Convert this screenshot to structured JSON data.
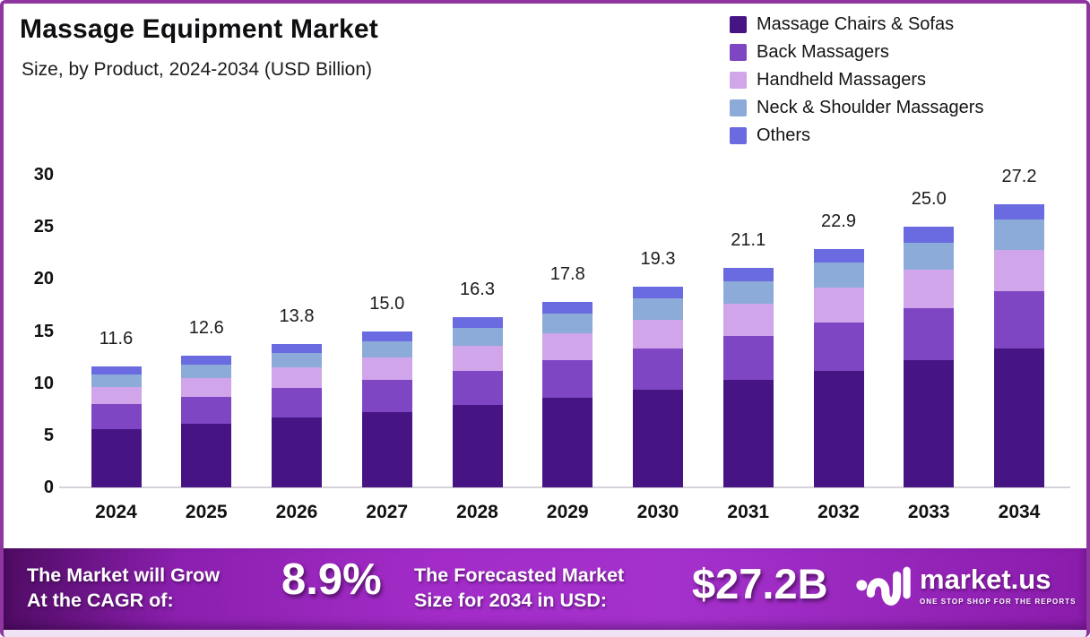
{
  "header": {
    "title": "Massage Equipment Market",
    "subtitle": "Size, by Product, 2024-2034 (USD Billion)"
  },
  "chart_data": {
    "type": "bar",
    "stacked": true,
    "title": "Massage Equipment Market",
    "subtitle": "Size, by Product, 2024-2034 (USD Billion)",
    "unit": "USD Billion",
    "categories": [
      "2024",
      "2025",
      "2026",
      "2027",
      "2028",
      "2029",
      "2030",
      "2031",
      "2032",
      "2033",
      "2034"
    ],
    "series": [
      {
        "name": "Massage Chairs & Sofas",
        "color": "#461583",
        "values": [
          5.6,
          6.1,
          6.7,
          7.2,
          7.9,
          8.6,
          9.4,
          10.3,
          11.2,
          12.2,
          13.3
        ]
      },
      {
        "name": "Back Massagers",
        "color": "#7e46c2",
        "values": [
          2.4,
          2.6,
          2.8,
          3.1,
          3.3,
          3.6,
          3.9,
          4.2,
          4.6,
          5.0,
          5.5
        ]
      },
      {
        "name": "Handheld Massagers",
        "color": "#d0a5e9",
        "values": [
          1.6,
          1.8,
          2.0,
          2.2,
          2.4,
          2.6,
          2.8,
          3.1,
          3.4,
          3.7,
          4.0
        ]
      },
      {
        "name": "Neck & Shoulder Massagers",
        "color": "#8cabd9",
        "values": [
          1.2,
          1.3,
          1.4,
          1.5,
          1.7,
          1.9,
          2.0,
          2.2,
          2.4,
          2.6,
          2.9
        ]
      },
      {
        "name": "Others",
        "color": "#6a6be0",
        "values": [
          0.8,
          0.8,
          0.9,
          1.0,
          1.0,
          1.1,
          1.2,
          1.3,
          1.3,
          1.5,
          1.5
        ]
      }
    ],
    "totals": [
      "11.6",
      "12.6",
      "13.8",
      "15.0",
      "16.3",
      "17.8",
      "19.3",
      "21.1",
      "22.9",
      "25.0",
      "27.2"
    ],
    "ylim": [
      0,
      30
    ],
    "yticks": [
      0,
      5,
      10,
      15,
      20,
      25,
      30
    ],
    "grid": false,
    "legend_position": "top-right"
  },
  "banner": {
    "cagr_label_line1": "The Market will Grow",
    "cagr_label_line2": "At the CAGR of:",
    "cagr_value": "8.9%",
    "forecast_label_line1": "The Forecasted Market",
    "forecast_label_line2": "Size for 2034 in USD:",
    "forecast_value": "$27.2B",
    "brand": "market.us",
    "brand_tagline": "ONE STOP SHOP FOR THE REPORTS"
  },
  "colors": {
    "frame_border": "#8e35a0",
    "axis_line": "#d7d2da",
    "banner_gradient_start": "#4f0b63",
    "banner_gradient_mid": "#a32cc8",
    "banner_gradient_end": "#8a1cab",
    "bottom_strip": "#efe3f5"
  }
}
